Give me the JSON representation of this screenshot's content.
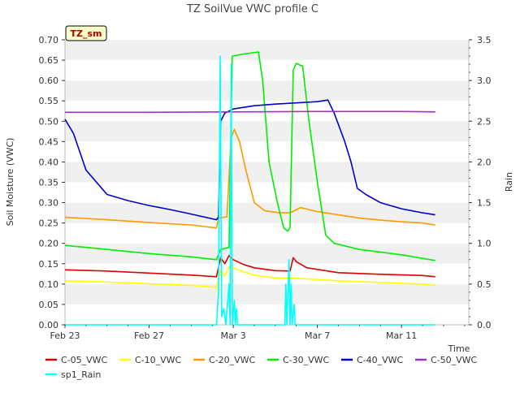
{
  "chart_data": {
    "type": "line",
    "title": "TZ SoilVue VWC profile C",
    "site_badge": "TZ_sm",
    "xlabel": "Time",
    "ylabel_left": "Soil Moisture (VWC)",
    "ylabel_right": "Rain",
    "x_range_days": [
      0,
      19.2
    ],
    "ylim_left": [
      0.0,
      0.7
    ],
    "ylim_right": [
      0.0,
      3.5
    ],
    "x_ticks": [
      {
        "day": 0,
        "label": "Feb 23"
      },
      {
        "day": 4,
        "label": "Feb 27"
      },
      {
        "day": 8,
        "label": "Mar 3"
      },
      {
        "day": 12,
        "label": "Mar 7"
      },
      {
        "day": 16,
        "label": "Mar 11"
      }
    ],
    "y_ticks_left": [
      "0.00",
      "0.05",
      "0.10",
      "0.15",
      "0.20",
      "0.25",
      "0.30",
      "0.35",
      "0.40",
      "0.45",
      "0.50",
      "0.55",
      "0.60",
      "0.65",
      "0.70"
    ],
    "y_ticks_right": [
      "0.0",
      "0.5",
      "1.0",
      "1.5",
      "2.0",
      "2.5",
      "3.0",
      "3.5"
    ],
    "grid": "horizontal bands",
    "legend_position": "bottom",
    "series": [
      {
        "name": "C-05_VWC",
        "color": "#dd0000",
        "axis": "left",
        "points": [
          [
            0,
            0.135
          ],
          [
            2,
            0.132
          ],
          [
            4,
            0.127
          ],
          [
            6,
            0.122
          ],
          [
            7.2,
            0.118
          ],
          [
            7.4,
            0.165
          ],
          [
            7.6,
            0.15
          ],
          [
            7.8,
            0.17
          ],
          [
            8,
            0.16
          ],
          [
            8.5,
            0.148
          ],
          [
            9,
            0.14
          ],
          [
            10,
            0.133
          ],
          [
            10.7,
            0.132
          ],
          [
            10.85,
            0.165
          ],
          [
            11,
            0.155
          ],
          [
            11.5,
            0.14
          ],
          [
            13,
            0.128
          ],
          [
            15,
            0.124
          ],
          [
            17,
            0.121
          ],
          [
            17.6,
            0.118
          ]
        ]
      },
      {
        "name": "C-10_VWC",
        "color": "#ffff00",
        "axis": "left",
        "points": [
          [
            0,
            0.108
          ],
          [
            2,
            0.105
          ],
          [
            4,
            0.101
          ],
          [
            6,
            0.097
          ],
          [
            7.2,
            0.092
          ],
          [
            7.4,
            0.135
          ],
          [
            7.6,
            0.12
          ],
          [
            7.8,
            0.142
          ],
          [
            8,
            0.14
          ],
          [
            8.5,
            0.13
          ],
          [
            9,
            0.122
          ],
          [
            10,
            0.115
          ],
          [
            11,
            0.114
          ],
          [
            13,
            0.108
          ],
          [
            15,
            0.104
          ],
          [
            17,
            0.1
          ],
          [
            17.6,
            0.097
          ]
        ]
      },
      {
        "name": "C-20_VWC",
        "color": "#ff9900",
        "axis": "left",
        "points": [
          [
            0,
            0.264
          ],
          [
            2,
            0.258
          ],
          [
            4,
            0.251
          ],
          [
            6,
            0.245
          ],
          [
            7.2,
            0.238
          ],
          [
            7.3,
            0.262
          ],
          [
            7.7,
            0.265
          ],
          [
            7.9,
            0.46
          ],
          [
            8.05,
            0.48
          ],
          [
            8.3,
            0.45
          ],
          [
            8.6,
            0.38
          ],
          [
            9,
            0.3
          ],
          [
            9.5,
            0.28
          ],
          [
            10.2,
            0.275
          ],
          [
            10.7,
            0.275
          ],
          [
            11.2,
            0.288
          ],
          [
            12,
            0.278
          ],
          [
            13,
            0.27
          ],
          [
            14,
            0.262
          ],
          [
            15,
            0.257
          ],
          [
            16,
            0.253
          ],
          [
            17,
            0.25
          ],
          [
            17.6,
            0.245
          ]
        ]
      },
      {
        "name": "C-30_VWC",
        "color": "#00ee00",
        "axis": "left",
        "points": [
          [
            0,
            0.195
          ],
          [
            2,
            0.185
          ],
          [
            4,
            0.175
          ],
          [
            6,
            0.167
          ],
          [
            7.2,
            0.16
          ],
          [
            7.4,
            0.185
          ],
          [
            7.8,
            0.19
          ],
          [
            7.95,
            0.66
          ],
          [
            8.5,
            0.665
          ],
          [
            9.2,
            0.67
          ],
          [
            9.4,
            0.6
          ],
          [
            9.7,
            0.4
          ],
          [
            10.1,
            0.3
          ],
          [
            10.4,
            0.238
          ],
          [
            10.6,
            0.23
          ],
          [
            10.7,
            0.24
          ],
          [
            10.85,
            0.625
          ],
          [
            11,
            0.642
          ],
          [
            11.3,
            0.635
          ],
          [
            11.6,
            0.5
          ],
          [
            12,
            0.35
          ],
          [
            12.4,
            0.22
          ],
          [
            12.8,
            0.2
          ],
          [
            14,
            0.185
          ],
          [
            16,
            0.172
          ],
          [
            17.6,
            0.158
          ]
        ]
      },
      {
        "name": "C-40_VWC",
        "color": "#0000cc",
        "axis": "left",
        "points": [
          [
            0,
            0.505
          ],
          [
            0.4,
            0.47
          ],
          [
            1,
            0.38
          ],
          [
            2,
            0.32
          ],
          [
            3,
            0.305
          ],
          [
            4,
            0.293
          ],
          [
            5,
            0.283
          ],
          [
            6,
            0.272
          ],
          [
            7.2,
            0.258
          ],
          [
            7.3,
            0.265
          ],
          [
            7.4,
            0.5
          ],
          [
            7.6,
            0.52
          ],
          [
            8,
            0.53
          ],
          [
            9,
            0.538
          ],
          [
            10,
            0.542
          ],
          [
            11,
            0.545
          ],
          [
            12,
            0.548
          ],
          [
            12.5,
            0.552
          ],
          [
            12.8,
            0.52
          ],
          [
            13.3,
            0.45
          ],
          [
            13.6,
            0.4
          ],
          [
            13.9,
            0.335
          ],
          [
            14.3,
            0.32
          ],
          [
            15,
            0.3
          ],
          [
            16,
            0.285
          ],
          [
            17,
            0.275
          ],
          [
            17.6,
            0.27
          ]
        ]
      },
      {
        "name": "C-50_VWC",
        "color": "#9933cc",
        "axis": "left",
        "points": [
          [
            0,
            0.522
          ],
          [
            4,
            0.522
          ],
          [
            8,
            0.523
          ],
          [
            12,
            0.524
          ],
          [
            16,
            0.524
          ],
          [
            17.6,
            0.523
          ]
        ]
      },
      {
        "name": "sp1_Rain",
        "color": "#00ffff",
        "axis": "right",
        "points": [
          [
            0,
            0
          ],
          [
            7.2,
            0
          ],
          [
            7.3,
            0.4
          ],
          [
            7.38,
            3.3
          ],
          [
            7.45,
            0.1
          ],
          [
            7.55,
            0.2
          ],
          [
            7.65,
            0
          ],
          [
            7.8,
            0.5
          ],
          [
            7.85,
            0
          ],
          [
            7.9,
            3.2
          ],
          [
            7.96,
            0
          ],
          [
            8.05,
            0.3
          ],
          [
            8.1,
            0
          ],
          [
            8.15,
            0.2
          ],
          [
            8.2,
            0
          ],
          [
            10.45,
            0
          ],
          [
            10.5,
            0.5
          ],
          [
            10.55,
            0
          ],
          [
            10.65,
            0.8
          ],
          [
            10.7,
            0
          ],
          [
            10.75,
            0.5
          ],
          [
            10.8,
            0
          ],
          [
            10.9,
            0.25
          ],
          [
            10.95,
            0
          ],
          [
            17.6,
            0
          ]
        ]
      }
    ]
  }
}
